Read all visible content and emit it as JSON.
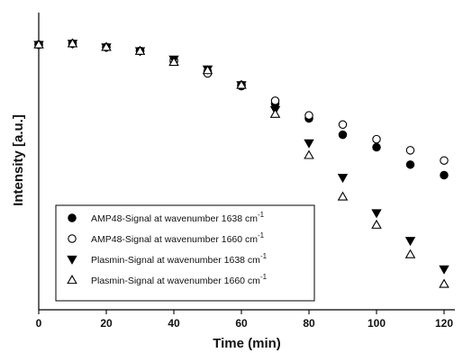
{
  "chart_data": {
    "type": "scatter",
    "xlabel": "Time (min)",
    "ylabel": "Intensity [a.u.]",
    "xlim": [
      0,
      120
    ],
    "ylim": [
      0,
      1
    ],
    "x_ticks": [
      "0",
      "20",
      "40",
      "60",
      "80",
      "100",
      "120"
    ],
    "y_ticks_shown": false,
    "grid": false,
    "legend_position": "bottom-left",
    "x": [
      0,
      10,
      20,
      30,
      40,
      50,
      60,
      70,
      80,
      90,
      100,
      110,
      120
    ],
    "series": [
      {
        "name": "AMP48-Signal at wavenumber 1638 cm",
        "superscript": "-1",
        "marker": "filled-circle",
        "color": "#000000",
        "values": [
          0.959,
          0.963,
          0.95,
          0.936,
          0.899,
          0.862,
          0.809,
          0.745,
          0.692,
          0.633,
          0.588,
          0.525,
          0.487
        ]
      },
      {
        "name": "AMP48-Signal at wavenumber 1660 cm",
        "superscript": "-1",
        "marker": "open-circle",
        "color": "#000000",
        "values": [
          0.959,
          0.963,
          0.95,
          0.936,
          0.903,
          0.855,
          0.813,
          0.756,
          0.703,
          0.67,
          0.617,
          0.577,
          0.54
        ]
      },
      {
        "name": "Plasmin-Signal at wavenumber 1638 cm",
        "superscript": "-1",
        "marker": "filled-triangle-down",
        "color": "#000000",
        "values": [
          0.959,
          0.963,
          0.95,
          0.936,
          0.906,
          0.87,
          0.813,
          0.723,
          0.603,
          0.478,
          0.35,
          0.25,
          0.147
        ]
      },
      {
        "name": "Plasmin-Signal at wavenumber 1660 cm",
        "superscript": "-1",
        "marker": "open-triangle-up",
        "color": "#000000",
        "values": [
          0.959,
          0.963,
          0.95,
          0.936,
          0.896,
          0.866,
          0.813,
          0.708,
          0.559,
          0.409,
          0.307,
          0.2,
          0.093
        ]
      }
    ]
  }
}
